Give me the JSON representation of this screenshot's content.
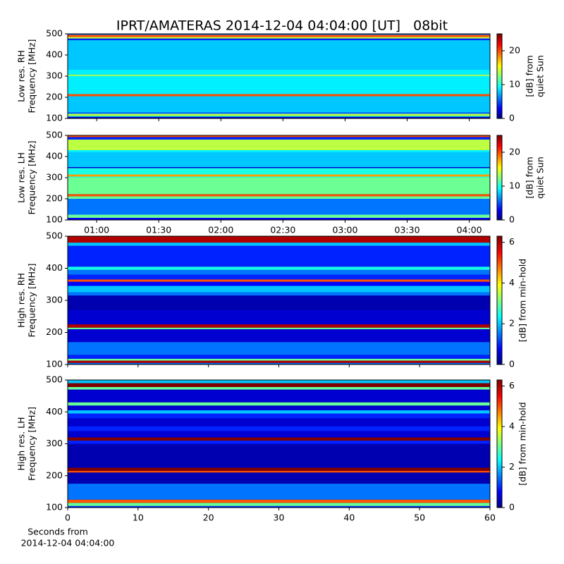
{
  "chart_data": [
    {
      "type": "heatmap",
      "title": "IPRT/AMATERAS 2014-12-04 04:04:00 [UT]   08bit",
      "ylabel": [
        "Low res. RH",
        "Frequency [MHz]"
      ],
      "ylim": [
        100,
        500
      ],
      "yticks": [
        100,
        200,
        300,
        400,
        500
      ],
      "xlim": [
        46,
        250
      ],
      "xticks": [
        60,
        90,
        120,
        150,
        180,
        210,
        240
      ],
      "ybins": [
        100,
        108,
        112,
        122,
        130,
        205,
        215,
        300,
        308,
        330,
        470,
        478,
        485,
        495,
        500
      ],
      "values": [
        2,
        10,
        14,
        6,
        8,
        20,
        9,
        13,
        9,
        8,
        4,
        14,
        20,
        6
      ],
      "clim": [
        0,
        25
      ],
      "cticks": [
        0,
        10,
        20
      ],
      "clabel": [
        "[dB] from",
        "quiet Sun"
      ],
      "colormap": "jet"
    },
    {
      "type": "heatmap",
      "ylabel": [
        "Low res. LH",
        "Frequency [MHz]"
      ],
      "ylim": [
        100,
        500
      ],
      "yticks": [
        100,
        200,
        300,
        400,
        500
      ],
      "xlim": [
        46,
        250
      ],
      "xticks": [
        {
          "value": 60,
          "label": "01:00"
        },
        {
          "value": 90,
          "label": "01:30"
        },
        {
          "value": 120,
          "label": "02:00"
        },
        {
          "value": 150,
          "label": "02:30"
        },
        {
          "value": 180,
          "label": "03:00"
        },
        {
          "value": 210,
          "label": "03:30"
        },
        {
          "value": 240,
          "label": "04:00"
        }
      ],
      "ybins": [
        100,
        110,
        125,
        200,
        212,
        222,
        300,
        305,
        315,
        345,
        350,
        420,
        430,
        480,
        492,
        500
      ],
      "values": [
        3,
        12,
        6,
        12,
        20,
        12,
        10,
        18,
        10,
        2,
        8,
        9,
        14,
        4,
        20
      ],
      "clim": [
        0,
        25
      ],
      "cticks": [
        0,
        10,
        20
      ],
      "clabel": [
        "[dB] from",
        "quiet Sun"
      ],
      "colormap": "jet"
    },
    {
      "type": "heatmap",
      "ylabel": [
        "High res. RH",
        "Frequency [MHz]"
      ],
      "ylim": [
        100,
        500
      ],
      "yticks": [
        100,
        200,
        300,
        400,
        500
      ],
      "xlim": [
        0,
        60
      ],
      "xticks": [
        0,
        10,
        20,
        30,
        40,
        50,
        60
      ],
      "ybins": [
        100,
        105,
        112,
        118,
        130,
        170,
        210,
        215,
        225,
        270,
        280,
        300,
        315,
        325,
        345,
        358,
        365,
        380,
        395,
        405,
        470,
        480,
        500
      ],
      "values": [
        1.5,
        6,
        3,
        1,
        1.5,
        0.5,
        3,
        6,
        0.5,
        0.3,
        0.3,
        0.3,
        1.5,
        2,
        0.8,
        5,
        1,
        1.5,
        2.5,
        1,
        2,
        6
      ],
      "clim": [
        0,
        6.3
      ],
      "cticks": [
        0,
        2,
        4,
        6
      ],
      "clabel": [
        "[dB] from min-hold"
      ],
      "colormap": "jet"
    },
    {
      "type": "heatmap",
      "ylabel": [
        "High res. LH",
        "Frequency [MHz]"
      ],
      "xlabel": [
        "Seconds from",
        "2014-12-04 04:04:00"
      ],
      "ylim": [
        100,
        500
      ],
      "yticks": [
        100,
        200,
        300,
        400,
        500
      ],
      "xlim": [
        0,
        60
      ],
      "xticks": [
        0,
        10,
        20,
        30,
        40,
        50,
        60
      ],
      "ybins": [
        100,
        105,
        115,
        125,
        175,
        210,
        215,
        225,
        260,
        275,
        300,
        310,
        320,
        340,
        355,
        380,
        395,
        405,
        420,
        430,
        470,
        478,
        490,
        500
      ],
      "values": [
        1,
        3,
        5,
        1.5,
        0.3,
        5,
        6.3,
        0.3,
        0.3,
        0.3,
        1,
        6.3,
        0.5,
        1,
        0.5,
        1,
        2,
        0.5,
        3,
        0.5,
        3,
        6.3,
        2
      ],
      "clim": [
        0,
        6.3
      ],
      "cticks": [
        0,
        2,
        4,
        6
      ],
      "clabel": [
        "[dB] from min-hold"
      ],
      "colormap": "jet"
    }
  ]
}
